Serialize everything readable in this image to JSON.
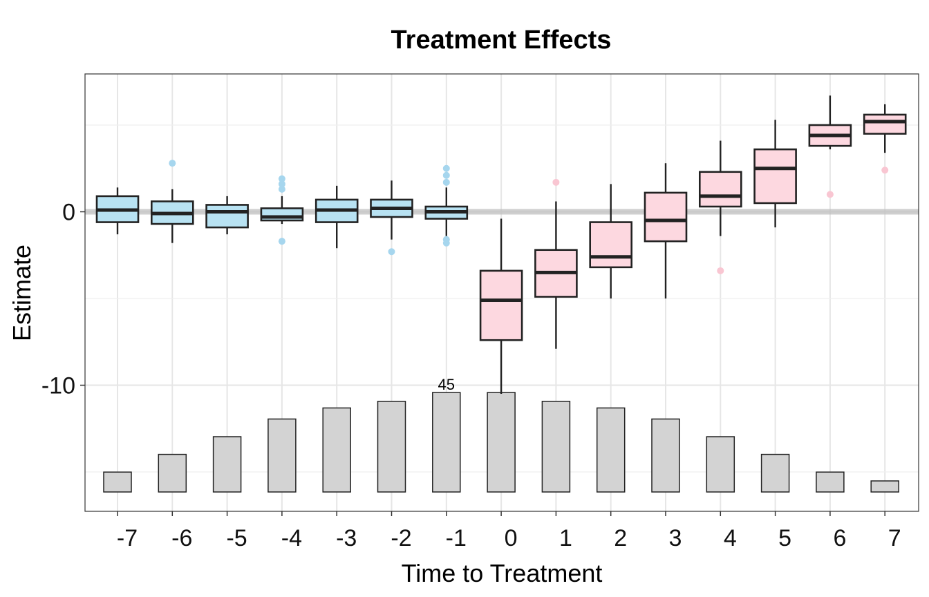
{
  "chart_data": {
    "type": "box",
    "title": "Treatment Effects",
    "xlabel": "Time to Treatment",
    "ylabel": "Estimate",
    "ylim": [
      -17.2,
      7.8
    ],
    "yticks": [
      0,
      -10
    ],
    "grid": true,
    "reference_line": 0,
    "categories": [
      "-7",
      "-6",
      "-5",
      "-4",
      "-3",
      "-2",
      "-1",
      "0",
      "1",
      "2",
      "3",
      "4",
      "5",
      "6",
      "7"
    ],
    "groups": [
      {
        "x": "-7",
        "period": "pre",
        "whisker_low": -1.3,
        "q1": -0.6,
        "median": 0.1,
        "q3": 0.9,
        "whisker_high": 1.4,
        "outliers": []
      },
      {
        "x": "-6",
        "period": "pre",
        "whisker_low": -1.8,
        "q1": -0.7,
        "median": -0.1,
        "q3": 0.6,
        "whisker_high": 1.3,
        "outliers": [
          2.8
        ]
      },
      {
        "x": "-5",
        "period": "pre",
        "whisker_low": -1.3,
        "q1": -0.9,
        "median": 0.0,
        "q3": 0.4,
        "whisker_high": 0.9,
        "outliers": []
      },
      {
        "x": "-4",
        "period": "pre",
        "whisker_low": -0.7,
        "q1": -0.5,
        "median": -0.3,
        "q3": 0.2,
        "whisker_high": 0.9,
        "outliers": [
          1.9,
          1.6,
          1.3,
          -1.7
        ]
      },
      {
        "x": "-3",
        "period": "pre",
        "whisker_low": -2.1,
        "q1": -0.6,
        "median": 0.1,
        "q3": 0.7,
        "whisker_high": 1.5,
        "outliers": []
      },
      {
        "x": "-2",
        "period": "pre",
        "whisker_low": -1.6,
        "q1": -0.3,
        "median": 0.2,
        "q3": 0.7,
        "whisker_high": 1.8,
        "outliers": [
          -2.3
        ]
      },
      {
        "x": "-1",
        "period": "pre",
        "whisker_low": -1.4,
        "q1": -0.4,
        "median": 0.0,
        "q3": 0.3,
        "whisker_high": 1.4,
        "outliers": [
          2.5,
          2.1,
          1.7,
          -1.6,
          -1.8
        ]
      },
      {
        "x": "0",
        "period": "post",
        "whisker_low": -10.5,
        "q1": -7.4,
        "median": -5.1,
        "q3": -3.4,
        "whisker_high": -0.4,
        "outliers": []
      },
      {
        "x": "1",
        "period": "post",
        "whisker_low": -7.9,
        "q1": -4.9,
        "median": -3.5,
        "q3": -2.2,
        "whisker_high": 0.6,
        "outliers": [
          1.7
        ]
      },
      {
        "x": "2",
        "period": "post",
        "whisker_low": -5.0,
        "q1": -3.2,
        "median": -2.6,
        "q3": -0.6,
        "whisker_high": 1.6,
        "outliers": []
      },
      {
        "x": "3",
        "period": "post",
        "whisker_low": -5.0,
        "q1": -1.7,
        "median": -0.5,
        "q3": 1.1,
        "whisker_high": 2.8,
        "outliers": []
      },
      {
        "x": "4",
        "period": "post",
        "whisker_low": -1.4,
        "q1": 0.3,
        "median": 0.9,
        "q3": 2.3,
        "whisker_high": 4.1,
        "outliers": [
          -3.4
        ]
      },
      {
        "x": "5",
        "period": "post",
        "whisker_low": -0.9,
        "q1": 0.5,
        "median": 2.5,
        "q3": 3.6,
        "whisker_high": 5.3,
        "outliers": []
      },
      {
        "x": "6",
        "period": "post",
        "whisker_low": 3.6,
        "q1": 3.8,
        "median": 4.4,
        "q3": 5.0,
        "whisker_high": 6.7,
        "outliers": [
          1.0
        ]
      },
      {
        "x": "7",
        "period": "post",
        "whisker_low": 3.4,
        "q1": 4.5,
        "median": 5.2,
        "q3": 5.6,
        "whisker_high": 6.2,
        "outliers": [
          2.4
        ]
      }
    ],
    "count_bars": {
      "counts": [
        9,
        17,
        25,
        33,
        38,
        41,
        45,
        45,
        41,
        38,
        33,
        25,
        17,
        9,
        5
      ],
      "max_label": "45",
      "max_label_index": 6
    },
    "colors": {
      "pre_fill": "#b8e2f2",
      "post_fill": "#fdd8e0",
      "pre_outlier": "#a6d6ee",
      "post_outlier": "#f9c6d2",
      "count_bar_fill": "#d3d3d3",
      "stroke": "#222222",
      "grid": "#e6e6e6",
      "reference_line": "#bbbbbb"
    }
  }
}
